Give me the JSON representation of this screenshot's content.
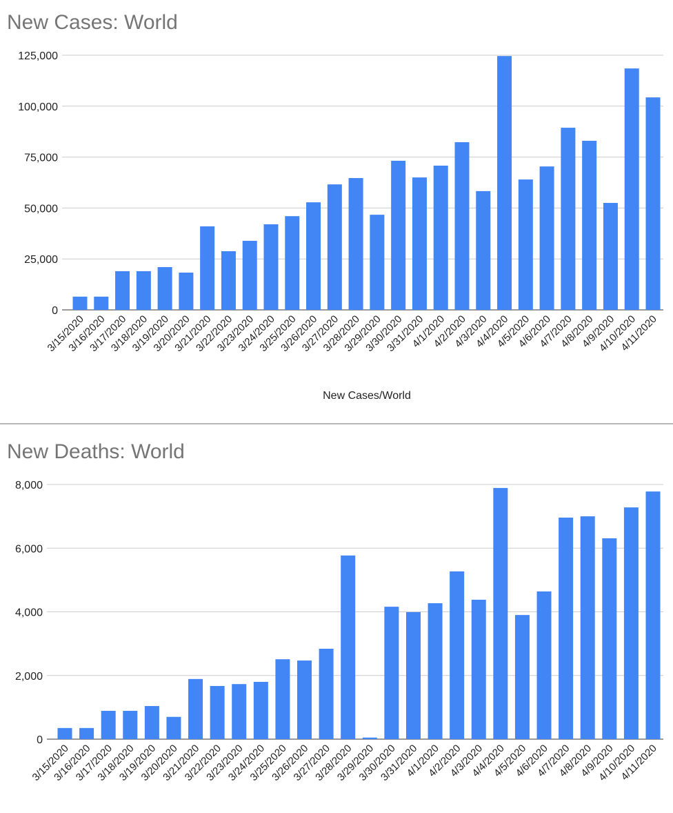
{
  "chart_data": [
    {
      "type": "bar",
      "title": "New Cases: World",
      "xlabel": "New Cases/World",
      "ylabel": "",
      "ylim": [
        0,
        125000
      ],
      "yticks": [
        "0",
        "25,000",
        "50,000",
        "75,000",
        "100,000",
        "125,000"
      ],
      "ytick_values": [
        0,
        25000,
        50000,
        75000,
        100000,
        125000
      ],
      "grid": true,
      "color": "#4285f4",
      "categories": [
        "3/15/2020",
        "3/16/2020",
        "3/17/2020",
        "3/18/2020",
        "3/19/2020",
        "3/20/2020",
        "3/21/2020",
        "3/22/2020",
        "3/23/2020",
        "3/24/2020",
        "3/25/2020",
        "3/26/2020",
        "3/27/2020",
        "3/28/2020",
        "3/29/2020",
        "3/30/2020",
        "3/31/2020",
        "4/1/2020",
        "4/2/2020",
        "4/3/2020",
        "4/4/2020",
        "4/5/2020",
        "4/6/2020",
        "4/7/2020",
        "4/8/2020",
        "4/9/2020",
        "4/10/2020",
        "4/11/2020"
      ],
      "values": [
        6500,
        6500,
        19000,
        19000,
        21000,
        18300,
        41000,
        28800,
        33900,
        42000,
        46000,
        52800,
        61600,
        64700,
        46700,
        73200,
        65000,
        70800,
        82300,
        58300,
        124600,
        64000,
        70400,
        89400,
        83000,
        52500,
        118500,
        104300
      ]
    },
    {
      "type": "bar",
      "title": "New Deaths: World",
      "xlabel": "",
      "ylabel": "",
      "ylim": [
        0,
        8000
      ],
      "yticks": [
        "0",
        "2,000",
        "4,000",
        "6,000",
        "8,000"
      ],
      "ytick_values": [
        0,
        2000,
        4000,
        6000,
        8000
      ],
      "grid": true,
      "color": "#4285f4",
      "categories": [
        "3/15/2020",
        "3/16/2020",
        "3/17/2020",
        "3/18/2020",
        "3/19/2020",
        "3/20/2020",
        "3/21/2020",
        "3/22/2020",
        "3/23/2020",
        "3/24/2020",
        "3/25/2020",
        "3/26/2020",
        "3/27/2020",
        "3/28/2020",
        "3/29/2020",
        "3/30/2020",
        "3/31/2020",
        "4/1/2020",
        "4/2/2020",
        "4/3/2020",
        "4/4/2020",
        "4/5/2020",
        "4/6/2020",
        "4/7/2020",
        "4/8/2020",
        "4/9/2020",
        "4/10/2020",
        "4/11/2020"
      ],
      "values": [
        350,
        350,
        890,
        890,
        1040,
        700,
        1890,
        1670,
        1730,
        1800,
        2510,
        2470,
        2840,
        5770,
        50,
        4160,
        3990,
        4270,
        5270,
        4380,
        7890,
        3900,
        4640,
        6960,
        7000,
        6310,
        7280,
        7780
      ]
    }
  ]
}
